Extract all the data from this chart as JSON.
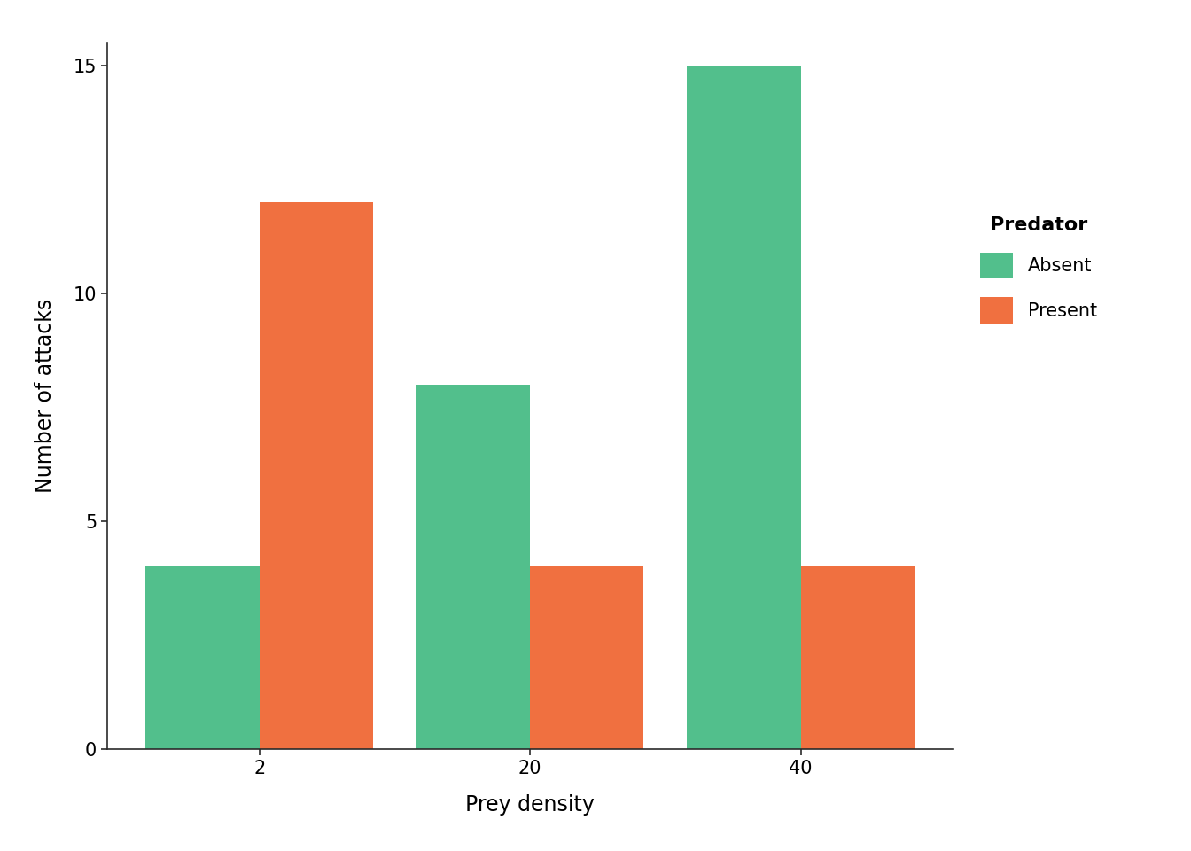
{
  "categories": [
    "2",
    "20",
    "40"
  ],
  "absent_values": [
    4,
    8,
    15
  ],
  "present_values": [
    12,
    4,
    4
  ],
  "absent_color": "#52BF8C",
  "present_color": "#F07040",
  "xlabel": "Prey density",
  "ylabel": "Number of attacks",
  "ylim": [
    0,
    15.5
  ],
  "yticks": [
    0,
    5,
    10,
    15
  ],
  "legend_title": "Predator",
  "legend_labels": [
    "Absent",
    "Present"
  ],
  "bar_width": 0.42,
  "background_color": "#ffffff",
  "axis_label_fontsize": 17,
  "tick_fontsize": 15,
  "legend_title_fontsize": 16,
  "legend_fontsize": 15
}
